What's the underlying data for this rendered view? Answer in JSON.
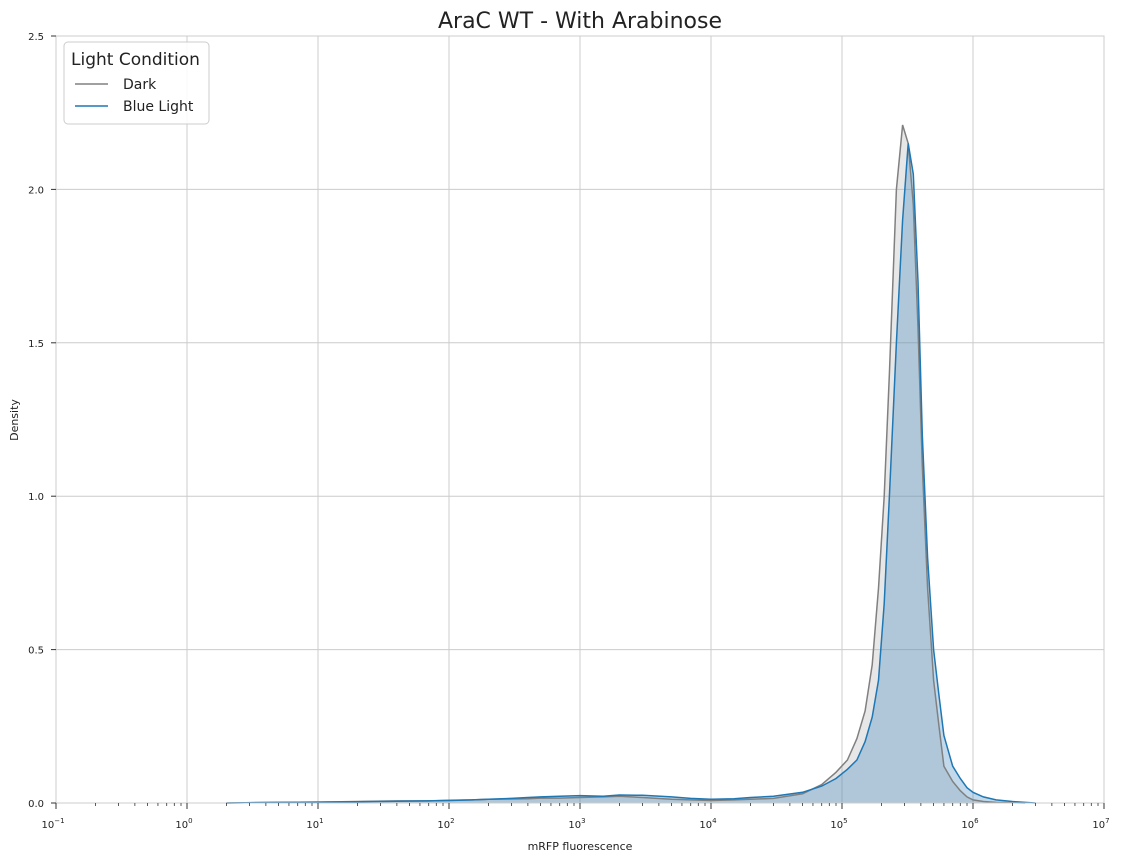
{
  "chart_data": {
    "type": "area",
    "title": "AraC WT - With Arabinose",
    "xlabel": "mRFP fluorescence",
    "ylabel": "Density",
    "xscale": "log",
    "xlim": [
      0.1,
      10000000
    ],
    "ylim": [
      0,
      2.5
    ],
    "grid": true,
    "x_ticks": [
      {
        "base": "10",
        "exp": "−1"
      },
      {
        "base": "10",
        "exp": "0"
      },
      {
        "base": "10",
        "exp": "1"
      },
      {
        "base": "10",
        "exp": "2"
      },
      {
        "base": "10",
        "exp": "3"
      },
      {
        "base": "10",
        "exp": "4"
      },
      {
        "base": "10",
        "exp": "5"
      },
      {
        "base": "10",
        "exp": "6"
      },
      {
        "base": "10",
        "exp": "7"
      }
    ],
    "x_tick_values": [
      0.1,
      1,
      10,
      100,
      1000,
      10000,
      100000,
      1000000,
      10000000
    ],
    "y_ticks": [
      "0.0",
      "0.5",
      "1.0",
      "1.5",
      "2.0",
      "2.5"
    ],
    "y_tick_values": [
      0,
      0.5,
      1.0,
      1.5,
      2.0,
      2.5
    ],
    "legend": {
      "title": "Light Condition",
      "position": "top-left"
    },
    "series": [
      {
        "name": "Dark",
        "color": "#808080",
        "fill": "#a9a9a9",
        "x": [
          2,
          5,
          10,
          20,
          40,
          70,
          100,
          150,
          200,
          300,
          400,
          500,
          700,
          1000,
          1500,
          2000,
          3000,
          5000,
          7000,
          10000,
          15000,
          20000,
          30000,
          50000,
          70000,
          90000,
          110000,
          130000,
          150000,
          170000,
          190000,
          210000,
          230000,
          260000,
          290000,
          320000,
          350000,
          380000,
          410000,
          450000,
          500000,
          550000,
          600000,
          700000,
          800000,
          900000,
          1000000,
          1200000,
          1500000,
          2000000,
          2500000
        ],
        "values": [
          0.0,
          0.002,
          0.003,
          0.005,
          0.007,
          0.007,
          0.009,
          0.01,
          0.012,
          0.013,
          0.014,
          0.016,
          0.016,
          0.018,
          0.02,
          0.022,
          0.018,
          0.012,
          0.01,
          0.008,
          0.01,
          0.012,
          0.015,
          0.03,
          0.06,
          0.1,
          0.14,
          0.21,
          0.3,
          0.45,
          0.7,
          1.0,
          1.4,
          2.0,
          2.21,
          2.15,
          1.95,
          1.55,
          1.1,
          0.7,
          0.4,
          0.25,
          0.12,
          0.07,
          0.04,
          0.02,
          0.01,
          0.005,
          0.002,
          0.001,
          0.0
        ]
      },
      {
        "name": "Blue Light",
        "color": "#1f77b4",
        "fill": "#1f77b4",
        "x": [
          2,
          5,
          10,
          20,
          40,
          70,
          100,
          150,
          200,
          300,
          400,
          500,
          700,
          1000,
          1500,
          2000,
          3000,
          5000,
          7000,
          10000,
          15000,
          20000,
          30000,
          50000,
          70000,
          90000,
          110000,
          130000,
          150000,
          170000,
          190000,
          210000,
          230000,
          260000,
          290000,
          320000,
          350000,
          380000,
          410000,
          450000,
          500000,
          550000,
          600000,
          700000,
          800000,
          900000,
          1000000,
          1200000,
          1500000,
          2000000,
          2500000,
          3000000
        ],
        "values": [
          0.0,
          0.002,
          0.003,
          0.004,
          0.006,
          0.007,
          0.008,
          0.01,
          0.012,
          0.015,
          0.018,
          0.02,
          0.022,
          0.024,
          0.022,
          0.026,
          0.025,
          0.02,
          0.015,
          0.012,
          0.014,
          0.018,
          0.022,
          0.035,
          0.055,
          0.08,
          0.11,
          0.14,
          0.2,
          0.28,
          0.4,
          0.65,
          1.0,
          1.5,
          1.9,
          2.15,
          2.05,
          1.7,
          1.2,
          0.8,
          0.5,
          0.35,
          0.22,
          0.12,
          0.08,
          0.05,
          0.035,
          0.02,
          0.01,
          0.005,
          0.002,
          0.0
        ]
      }
    ]
  }
}
